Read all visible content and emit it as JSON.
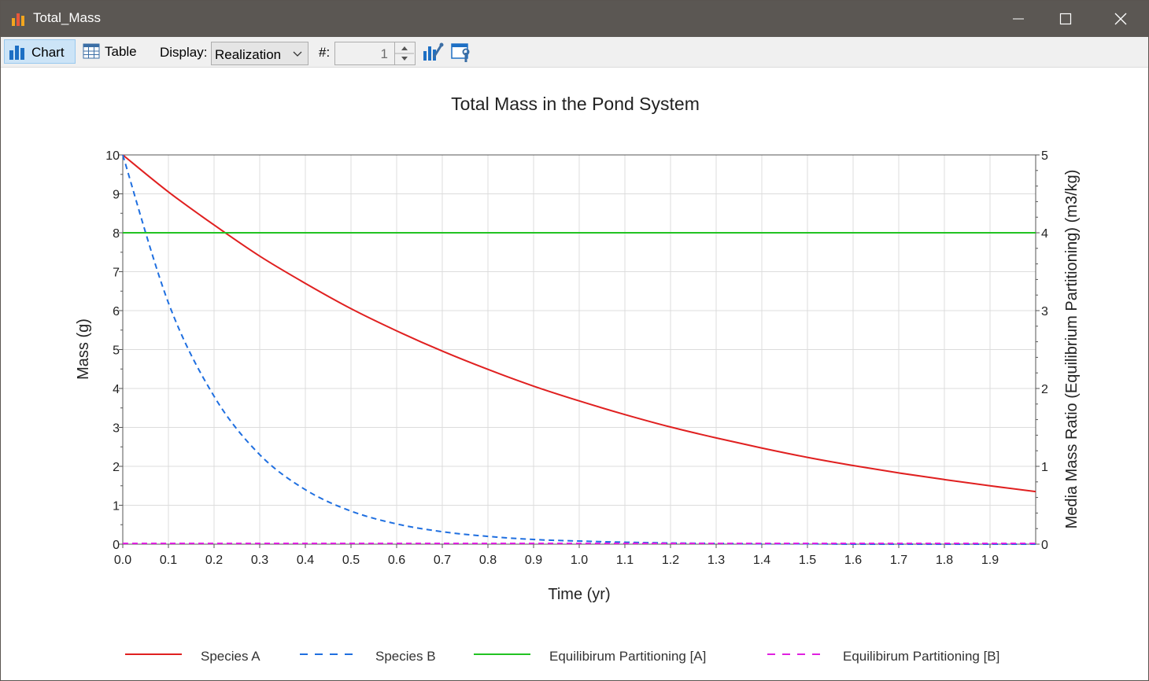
{
  "window": {
    "title": "Total_Mass"
  },
  "toolbar": {
    "chart_label": "Chart",
    "table_label": "Table",
    "display_label": "Display:",
    "display_value": "Realization",
    "realization_label": "#:",
    "realization_value": "1"
  },
  "colors": {
    "titlebar": "#5b5753",
    "species_a": "#e02020",
    "species_b": "#1f6fe0",
    "equil_a": "#22c322",
    "equil_b": "#e020e0"
  },
  "chart_data": {
    "type": "line",
    "title": "Total Mass in the Pond System",
    "xlabel": "Time (yr)",
    "ylabel": "Mass (g)",
    "y2label": "Media Mass Ratio (Equilibrium Partitioning) (m3/kg)",
    "xlim": [
      0,
      2
    ],
    "ylim": [
      0,
      10
    ],
    "y2lim": [
      0,
      5
    ],
    "x_ticks": [
      "0.0",
      "0.1",
      "0.2",
      "0.3",
      "0.4",
      "0.5",
      "0.6",
      "0.7",
      "0.8",
      "0.9",
      "1.0",
      "1.1",
      "1.2",
      "1.3",
      "1.4",
      "1.5",
      "1.6",
      "1.7",
      "1.8",
      "1.9"
    ],
    "y_ticks": [
      "0",
      "1",
      "2",
      "3",
      "4",
      "5",
      "6",
      "7",
      "8",
      "9",
      "10"
    ],
    "y2_ticks": [
      "0",
      "1",
      "2",
      "3",
      "4",
      "5"
    ],
    "grid": true,
    "legend_position": "bottom",
    "x": [
      0.0,
      0.1,
      0.2,
      0.3,
      0.4,
      0.5,
      0.6,
      0.7,
      0.8,
      0.9,
      1.0,
      1.1,
      1.2,
      1.3,
      1.4,
      1.5,
      1.6,
      1.7,
      1.8,
      1.9,
      2.0
    ],
    "series": [
      {
        "name": "Species A",
        "axis": "left",
        "style": "solid",
        "color": "#e02020",
        "values": [
          10.0,
          9.05,
          8.2,
          7.4,
          6.7,
          6.05,
          5.48,
          4.96,
          4.49,
          4.06,
          3.68,
          3.33,
          3.01,
          2.73,
          2.47,
          2.23,
          2.02,
          1.83,
          1.66,
          1.5,
          1.35
        ]
      },
      {
        "name": "Species B",
        "axis": "left",
        "style": "dashed",
        "color": "#1f6fe0",
        "values": [
          10.0,
          6.2,
          3.8,
          2.3,
          1.4,
          0.85,
          0.52,
          0.32,
          0.2,
          0.12,
          0.08,
          0.05,
          0.03,
          0.02,
          0.01,
          0.01,
          0.0,
          0.0,
          0.0,
          0.0,
          0.0
        ]
      },
      {
        "name": "Equilibirum Partitioning [A]",
        "axis": "right",
        "style": "solid",
        "color": "#22c322",
        "values": [
          4.0,
          4.0,
          4.0,
          4.0,
          4.0,
          4.0,
          4.0,
          4.0,
          4.0,
          4.0,
          4.0,
          4.0,
          4.0,
          4.0,
          4.0,
          4.0,
          4.0,
          4.0,
          4.0,
          4.0,
          4.0
        ]
      },
      {
        "name": "Equilibirum Partitioning [B]",
        "axis": "right",
        "style": "dashed",
        "color": "#e020e0",
        "values": [
          0.01,
          0.01,
          0.01,
          0.01,
          0.01,
          0.01,
          0.01,
          0.01,
          0.01,
          0.01,
          0.01,
          0.01,
          0.01,
          0.01,
          0.01,
          0.01,
          0.01,
          0.01,
          0.01,
          0.01,
          0.01
        ]
      }
    ]
  }
}
